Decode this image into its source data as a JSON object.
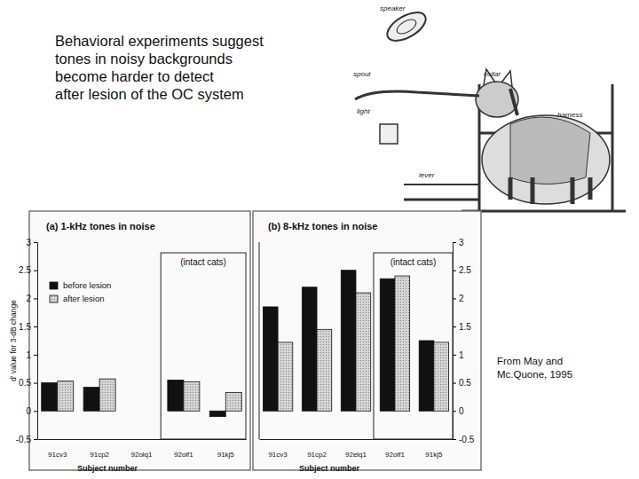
{
  "heading": [
    "Behavioral experiments suggest",
    "tones in noisy backgrounds",
    "become harder to detect",
    "after lesion of the OC system"
  ],
  "illustration_labels": [
    "speaker",
    "spout",
    "collar",
    "harness",
    "light",
    "lever"
  ],
  "credit": [
    "From May and",
    "Mc.Quone, 1995"
  ],
  "chart_data": [
    {
      "type": "bar",
      "title": "(a) 1-kHz tones in noise",
      "x_label": "Subject number",
      "y_label": "d' value for 3-dB change",
      "categories": [
        "91cv3",
        "91cp2",
        "92olq1",
        "92olf1",
        "91kj5"
      ],
      "series": [
        {
          "name": "before lesion",
          "color": "#111111",
          "values": [
            0.5,
            0.42,
            null,
            0.55,
            -0.1
          ]
        },
        {
          "name": "after lesion",
          "color": "#d4d4d4",
          "values": [
            0.53,
            0.57,
            null,
            0.52,
            0.33
          ]
        }
      ],
      "ylim": [
        -0.5,
        3
      ],
      "yticks": [
        -0.5,
        0,
        0.5,
        1,
        1.5,
        2,
        2.5,
        3
      ],
      "legend": "upper left",
      "annotations": [
        "(intact cats)"
      ]
    },
    {
      "type": "bar",
      "title": "(b) 8-kHz tones in noise",
      "x_label": "Subject number",
      "categories": [
        "91cv3",
        "91cp2",
        "92elq1",
        "92olf1",
        "91kj5"
      ],
      "series": [
        {
          "color": "#111111",
          "values": [
            1.85,
            2.2,
            2.5,
            2.35,
            1.25
          ]
        },
        {
          "color": "#d4d4d4",
          "values": [
            1.22,
            1.45,
            2.1,
            2.4,
            1.22
          ]
        }
      ],
      "ylim": [
        -0.5,
        3
      ],
      "yticks": [
        -0.5,
        0,
        0.5,
        1,
        1.5,
        2,
        2.5,
        3
      ],
      "annotations": [
        "(intact cats)"
      ]
    }
  ]
}
